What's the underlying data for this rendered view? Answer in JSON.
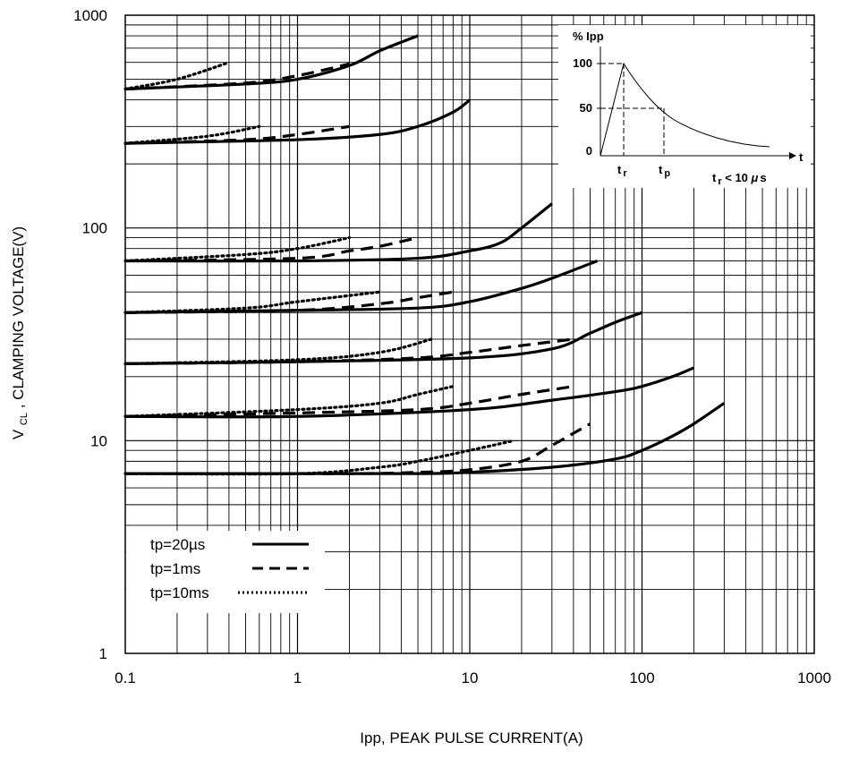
{
  "chart_data": {
    "type": "line",
    "xlabel": "Ipp, PEAK PULSE CURRENT(A)",
    "ylabel": {
      "main": "V",
      "sub": "CL",
      "rest": ", CLAMPING VOLTAGE(V)"
    },
    "xscale": "log",
    "yscale": "log",
    "xlim": [
      0.1,
      1000
    ],
    "ylim": [
      1,
      1000
    ],
    "grid": true,
    "xticks": [
      "0.1",
      "1",
      "10",
      "100",
      "1000"
    ],
    "yticks": [
      "1",
      "10",
      "100",
      "1000"
    ],
    "legend": {
      "placement": "bottom-left",
      "entries": [
        {
          "label": "tp=20µs",
          "style": "solid"
        },
        {
          "label": "tp=1ms",
          "style": "dashed"
        },
        {
          "label": "tp=10ms",
          "style": "dotted"
        }
      ]
    },
    "series": [
      {
        "style": "solid",
        "x": [
          0.1,
          0.5,
          1,
          2,
          3,
          5
        ],
        "y": [
          450,
          475,
          500,
          580,
          680,
          800
        ]
      },
      {
        "style": "dashed",
        "x": [
          0.1,
          0.5,
          1,
          2
        ],
        "y": [
          450,
          480,
          520,
          590
        ]
      },
      {
        "style": "dotted",
        "x": [
          0.1,
          0.2,
          0.4
        ],
        "y": [
          450,
          500,
          600
        ]
      },
      {
        "style": "solid",
        "x": [
          0.1,
          1,
          3,
          5,
          8,
          10
        ],
        "y": [
          250,
          260,
          275,
          300,
          350,
          400
        ]
      },
      {
        "style": "dashed",
        "x": [
          0.1,
          0.5,
          1,
          2
        ],
        "y": [
          250,
          260,
          275,
          300
        ]
      },
      {
        "style": "dotted",
        "x": [
          0.1,
          0.3,
          0.6
        ],
        "y": [
          250,
          270,
          300
        ]
      },
      {
        "style": "solid",
        "x": [
          0.1,
          1,
          5,
          10,
          15,
          20,
          30
        ],
        "y": [
          70,
          70,
          72,
          78,
          85,
          100,
          130
        ]
      },
      {
        "style": "dashed",
        "x": [
          0.1,
          1,
          2,
          3,
          5
        ],
        "y": [
          70,
          72,
          78,
          82,
          90
        ]
      },
      {
        "style": "dotted",
        "x": [
          0.1,
          0.5,
          1,
          2
        ],
        "y": [
          70,
          75,
          80,
          90
        ]
      },
      {
        "style": "solid",
        "x": [
          0.1,
          1,
          5,
          10,
          20,
          30,
          55
        ],
        "y": [
          40,
          41,
          42,
          45,
          52,
          58,
          70
        ]
      },
      {
        "style": "dashed",
        "x": [
          0.1,
          1,
          3,
          5,
          8
        ],
        "y": [
          40,
          41,
          44,
          47,
          50
        ]
      },
      {
        "style": "dotted",
        "x": [
          0.1,
          0.5,
          1,
          3
        ],
        "y": [
          40,
          42,
          45,
          50
        ]
      },
      {
        "style": "solid",
        "x": [
          0.1,
          1,
          10,
          30,
          50,
          70,
          100
        ],
        "y": [
          23,
          23.5,
          24.5,
          27,
          32,
          36,
          40
        ]
      },
      {
        "style": "dashed",
        "x": [
          0.1,
          1,
          5,
          10,
          20,
          40
        ],
        "y": [
          23,
          23.5,
          24.5,
          26,
          28,
          30
        ]
      },
      {
        "style": "dotted",
        "x": [
          0.1,
          1,
          3,
          6
        ],
        "y": [
          23,
          24,
          26,
          30
        ]
      },
      {
        "style": "solid",
        "x": [
          0.1,
          1,
          10,
          30,
          70,
          100,
          150,
          200
        ],
        "y": [
          13,
          13,
          14,
          15.5,
          17,
          18,
          20,
          22
        ]
      },
      {
        "style": "dashed",
        "x": [
          0.1,
          1,
          5,
          10,
          20,
          40
        ],
        "y": [
          13,
          13.5,
          14,
          15,
          16.5,
          18
        ]
      },
      {
        "style": "dotted",
        "x": [
          0.1,
          1,
          3,
          5,
          8
        ],
        "y": [
          13,
          14,
          15,
          16.5,
          18
        ]
      },
      {
        "style": "solid",
        "x": [
          0.1,
          1,
          5,
          10,
          30,
          70,
          100,
          150,
          200,
          300
        ],
        "y": [
          7,
          7,
          7,
          7.1,
          7.5,
          8.2,
          9,
          10.5,
          12,
          15
        ]
      },
      {
        "style": "dashed",
        "x": [
          0.1,
          2,
          5,
          10,
          20,
          30,
          50
        ],
        "y": [
          7,
          7,
          7.1,
          7.3,
          8,
          9.5,
          12
        ]
      },
      {
        "style": "dotted",
        "x": [
          0.1,
          1,
          3,
          5,
          10,
          18
        ],
        "y": [
          7,
          7,
          7.5,
          8,
          9,
          10
        ]
      }
    ],
    "inset": {
      "ylabel": "% Ipp",
      "yticks": [
        "100",
        "50",
        "0"
      ],
      "t_axis": "t",
      "tr_label": "t",
      "tr_sub": "r",
      "tp_label": "t",
      "tp_sub": "p",
      "note_t": "t",
      "note_sub": "r",
      "note_rest": " < 10 ",
      "note_mu": "μ",
      "note_unit": "s"
    }
  }
}
